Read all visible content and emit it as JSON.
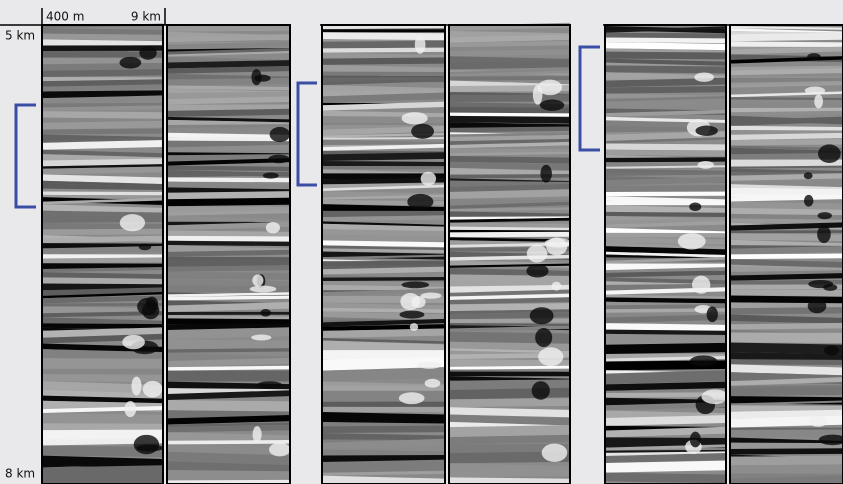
{
  "scale": {
    "width_label": "400 m",
    "distance_label": "9 km",
    "top_depth": "5 km",
    "bottom_depth": "8 km"
  }
}
